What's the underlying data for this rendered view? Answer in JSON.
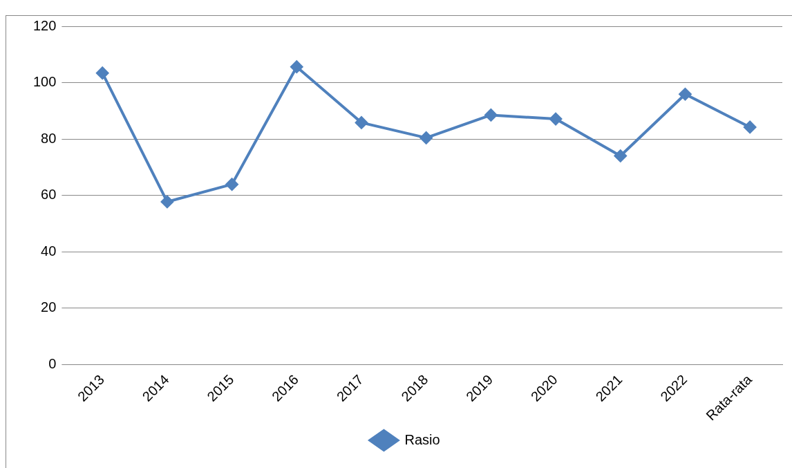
{
  "chart_data": {
    "type": "line",
    "categories": [
      "2013",
      "2014",
      "2015",
      "2016",
      "2017",
      "2018",
      "2019",
      "2020",
      "2021",
      "2022",
      "Rata-rata"
    ],
    "series": [
      {
        "name": "Rasio",
        "color": "#4f81bd",
        "values": [
          103.4,
          57.7,
          63.9,
          105.6,
          85.8,
          80.4,
          88.5,
          87.1,
          74.0,
          95.9,
          84.2
        ]
      }
    ],
    "ylim": [
      0,
      120
    ],
    "yticks": [
      0,
      20,
      40,
      60,
      80,
      100,
      120
    ],
    "grid": "y",
    "legend": "bottom",
    "marker": "diamond",
    "line_style": "solid"
  }
}
